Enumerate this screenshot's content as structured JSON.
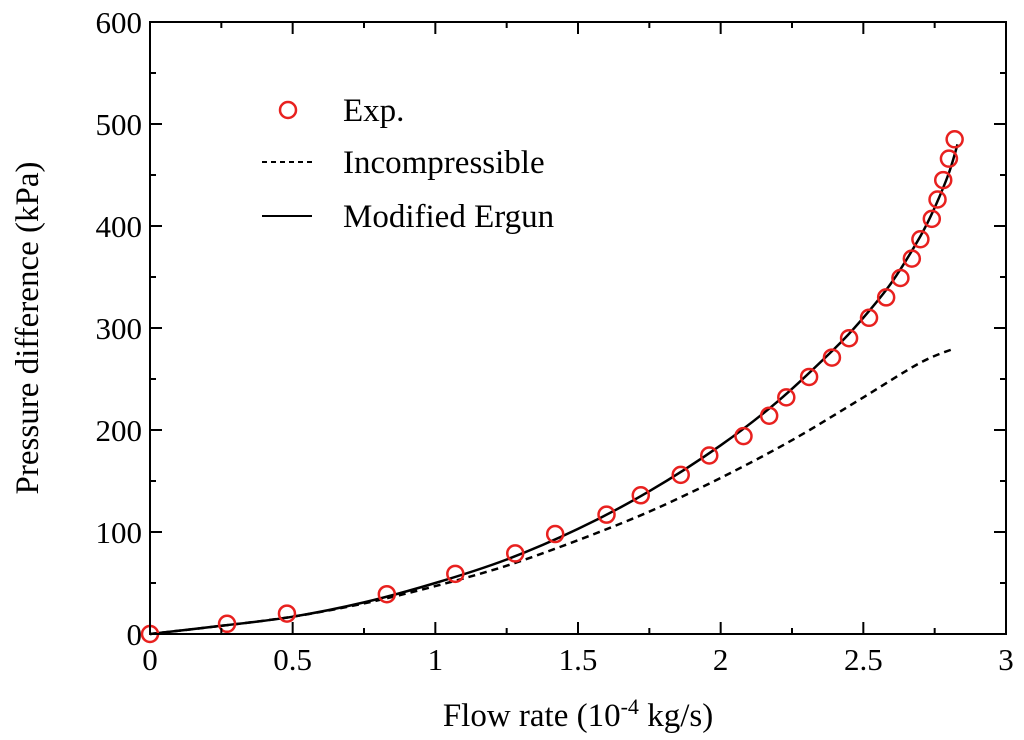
{
  "chart_data": {
    "type": "scatter+line",
    "title": "",
    "xlabel": "Flow rate (10-4 kg/s)",
    "xlabel_parts": {
      "prefix": "Flow rate (10",
      "superscript": "-4",
      "suffix": " kg/s)"
    },
    "ylabel": "Pressure difference (kPa)",
    "xlim": [
      0,
      3
    ],
    "ylim": [
      0,
      600
    ],
    "xticks": [
      "0",
      "0.5",
      "1",
      "1.5",
      "2",
      "2.5",
      "3"
    ],
    "yticks": [
      "0",
      "100",
      "200",
      "300",
      "400",
      "500",
      "600"
    ],
    "xtick_values": [
      0,
      0.5,
      1,
      1.5,
      2,
      2.5,
      3
    ],
    "ytick_values": [
      0,
      100,
      200,
      300,
      400,
      500,
      600
    ],
    "grid": false,
    "legend_position": "top-left",
    "legend": [
      "Exp.",
      "Incompressible",
      "Modified Ergun"
    ],
    "colors": {
      "exp": "#e8211f",
      "lines": "#000000"
    },
    "series": [
      {
        "name": "Exp.",
        "style": "open-circle",
        "x": [
          0,
          0.27,
          0.48,
          0.83,
          1.07,
          1.28,
          1.42,
          1.6,
          1.72,
          1.86,
          1.96,
          2.08,
          2.17,
          2.23,
          2.31,
          2.39,
          2.45,
          2.52,
          2.58,
          2.63,
          2.67,
          2.7,
          2.74,
          2.76,
          2.78,
          2.8,
          2.82
        ],
        "y": [
          0,
          10,
          20,
          39,
          59,
          79,
          98,
          117,
          136,
          156,
          175,
          194,
          214,
          232,
          252,
          271,
          290,
          310,
          330,
          349,
          368,
          387,
          407,
          426,
          445,
          466,
          485
        ]
      },
      {
        "name": "Incompressible",
        "style": "dashed",
        "x": [
          0,
          0.25,
          0.5,
          0.75,
          1.0,
          1.25,
          1.5,
          1.75,
          2.0,
          2.25,
          2.5,
          2.7,
          2.82
        ],
        "y": [
          0,
          8,
          17,
          30,
          47,
          67,
          92,
          120,
          153,
          190,
          232,
          266,
          280
        ]
      },
      {
        "name": "Modified Ergun",
        "style": "solid",
        "x": [
          0,
          0.25,
          0.5,
          0.75,
          1.0,
          1.25,
          1.5,
          1.75,
          2.0,
          2.2,
          2.4,
          2.5,
          2.6,
          2.7,
          2.75,
          2.8,
          2.83
        ],
        "y": [
          0,
          8,
          17,
          31,
          50,
          73,
          103,
          140,
          185,
          228,
          280,
          310,
          345,
          390,
          418,
          452,
          480
        ]
      }
    ]
  }
}
